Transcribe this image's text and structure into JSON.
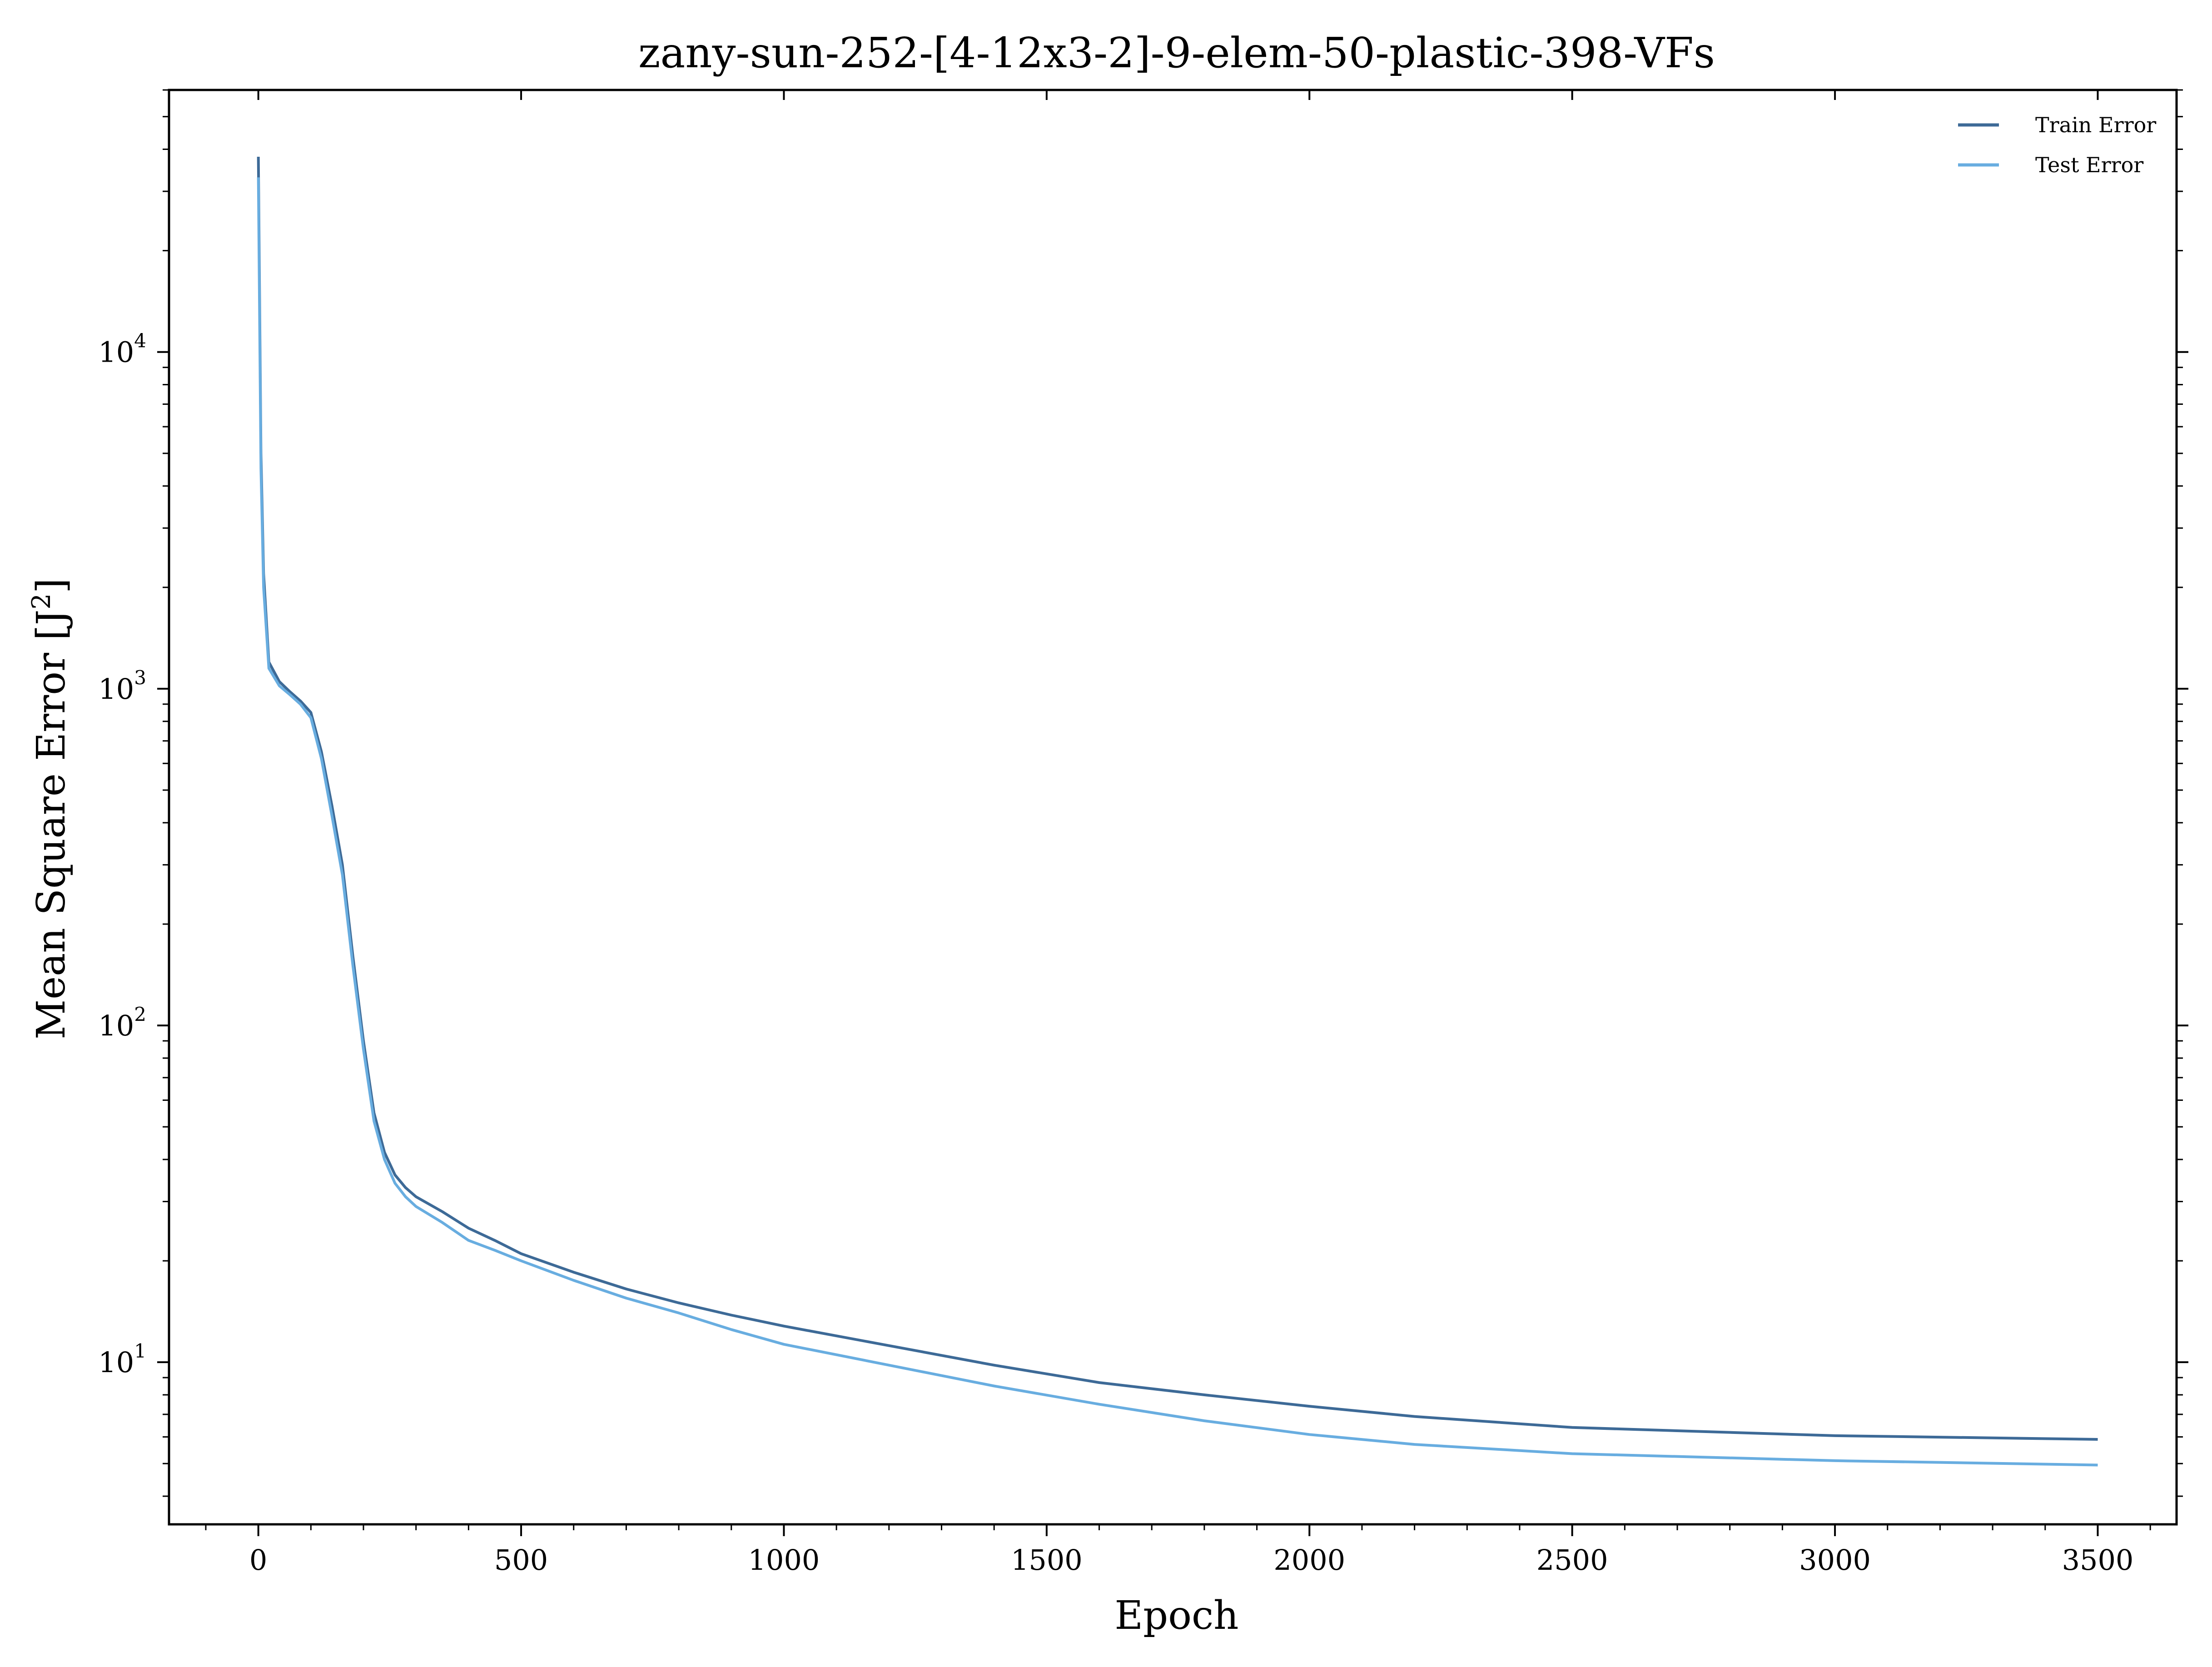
{
  "chart_data": {
    "type": "line",
    "title": "zany-sun-252-[4-12x3-2]-9-elem-50-plastic-398-VFs",
    "xlabel": "Epoch",
    "ylabel": "Mean Square Error [J",
    "ylabel_sup": "2",
    "ylabel_tail": "]",
    "xlim": [
      -170,
      3650
    ],
    "ylim": [
      3.3,
      60000
    ],
    "yscale": "log",
    "grid": false,
    "legend_position": "top-right",
    "x_ticks": [
      {
        "label": "0",
        "value": 0
      },
      {
        "label": "500",
        "value": 500
      },
      {
        "label": "1000",
        "value": 1000
      },
      {
        "label": "1500",
        "value": 1500
      },
      {
        "label": "2000",
        "value": 2000
      },
      {
        "label": "2500",
        "value": 2500
      },
      {
        "label": "3000",
        "value": 3000
      },
      {
        "label": "3500",
        "value": 3500
      }
    ],
    "y_ticks": [
      {
        "base": "10",
        "exp": "1",
        "value": 10
      },
      {
        "base": "10",
        "exp": "2",
        "value": 100
      },
      {
        "base": "10",
        "exp": "3",
        "value": 1000
      },
      {
        "base": "10",
        "exp": "4",
        "value": 10000
      }
    ],
    "series": [
      {
        "name": "Train Error",
        "color": "#3d6a97",
        "x": [
          0,
          5,
          10,
          20,
          40,
          60,
          80,
          100,
          120,
          140,
          160,
          180,
          200,
          220,
          240,
          260,
          280,
          300,
          350,
          400,
          450,
          500,
          600,
          700,
          800,
          900,
          1000,
          1200,
          1400,
          1600,
          1800,
          2000,
          2200,
          2500,
          3000,
          3500
        ],
        "y": [
          38000,
          5000,
          2200,
          1200,
          1050,
          980,
          920,
          850,
          650,
          450,
          300,
          160,
          90,
          55,
          42,
          36,
          33,
          31,
          28,
          25,
          23,
          21,
          18.5,
          16.5,
          15,
          13.8,
          12.8,
          11.2,
          9.8,
          8.7,
          8.0,
          7.4,
          6.9,
          6.4,
          6.05,
          5.9
        ]
      },
      {
        "name": "Test Error",
        "color": "#68ade0",
        "x": [
          0,
          5,
          10,
          20,
          40,
          60,
          80,
          100,
          120,
          140,
          160,
          180,
          200,
          220,
          240,
          260,
          280,
          300,
          350,
          400,
          450,
          500,
          600,
          700,
          800,
          900,
          1000,
          1200,
          1400,
          1600,
          1800,
          2000,
          2200,
          2500,
          3000,
          3500
        ],
        "y": [
          33000,
          4500,
          2000,
          1150,
          1020,
          960,
          900,
          820,
          620,
          420,
          280,
          150,
          85,
          52,
          40,
          34,
          31,
          29,
          26,
          23,
          21.5,
          20,
          17.5,
          15.5,
          14,
          12.5,
          11.3,
          9.8,
          8.5,
          7.5,
          6.7,
          6.1,
          5.7,
          5.35,
          5.1,
          4.95
        ]
      }
    ]
  }
}
